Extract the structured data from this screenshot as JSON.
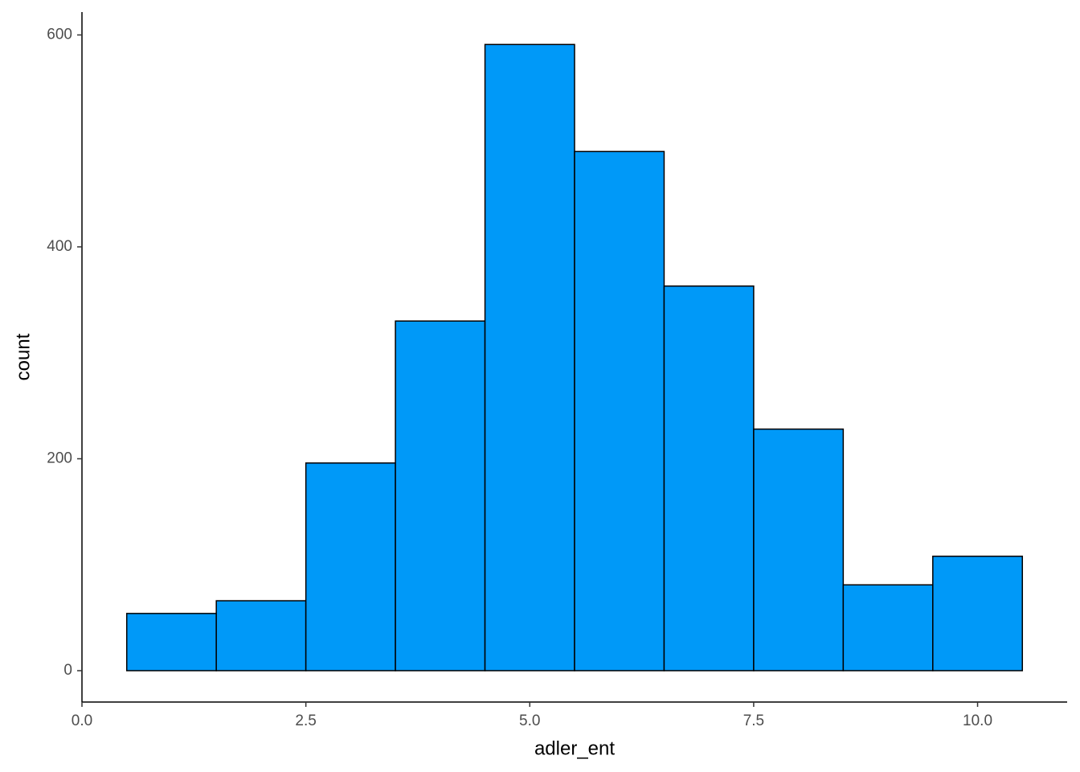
{
  "chart_data": {
    "type": "histogram",
    "x_label": "adler_ent",
    "y_label": "count",
    "bins": [
      0.5,
      1.5,
      2.5,
      3.5,
      4.5,
      5.5,
      6.5,
      7.5,
      8.5,
      9.5,
      10.5
    ],
    "values": [
      54,
      66,
      196,
      330,
      591,
      490,
      363,
      228,
      81,
      108
    ],
    "color": "#0099f8",
    "edgecolor": "#000000",
    "xlim": [
      0,
      11
    ],
    "ylim": [
      -29.6,
      621.6
    ],
    "xticks": [
      {
        "value": 0,
        "label": "0.0"
      },
      {
        "value": 2.5,
        "label": "2.5"
      },
      {
        "value": 5,
        "label": "5.0"
      },
      {
        "value": 7.5,
        "label": "7.5"
      },
      {
        "value": 10,
        "label": "10.0"
      }
    ],
    "yticks": [
      0,
      200,
      400,
      600
    ],
    "grid": false
  }
}
